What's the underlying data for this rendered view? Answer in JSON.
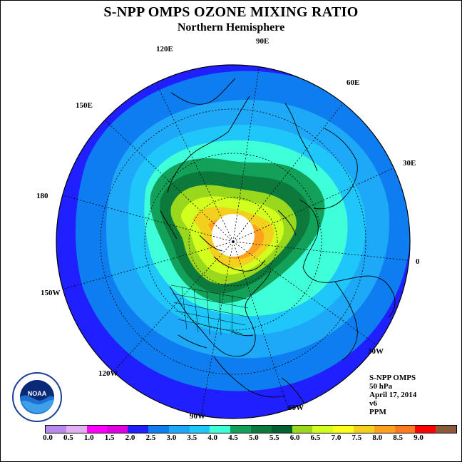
{
  "title": "S-NPP OMPS OZONE MIXING RATIO",
  "subtitle": "Northern Hemisphere",
  "longitude_labels": [
    "120E",
    "90E",
    "60E",
    "150E",
    "30E",
    "180",
    "0",
    "150W",
    "30W",
    "120W",
    "60W",
    "90W"
  ],
  "info": {
    "instrument": "S-NPP OMPS",
    "level": "50 hPa",
    "date": "April 17, 2014",
    "version": "v6",
    "units": "PPM"
  },
  "logo": {
    "name": "noaa-logo",
    "text": "NOAA"
  },
  "colorbar": {
    "colors": [
      "#b888ef",
      "#e2b0f0",
      "#ff00ff",
      "#e000e0",
      "#1f1fff",
      "#0d7df0",
      "#1ea8f8",
      "#1ec6fa",
      "#3effd8",
      "#13a15a",
      "#0b7a3a",
      "#006030",
      "#9ad81e",
      "#d2ff1e",
      "#ffff1e",
      "#f4d01e",
      "#ffa01e",
      "#ff7a1e",
      "#ff0000",
      "#8a5a3a"
    ],
    "tick_labels": [
      "0.0",
      "0.5",
      "1.0",
      "1.5",
      "2.0",
      "2.5",
      "3.0",
      "3.5",
      "4.0",
      "4.5",
      "5.0",
      "5.5",
      "6.0",
      "6.5",
      "7.0",
      "7.5",
      "8.0",
      "8.5",
      "9.0"
    ]
  },
  "field_colors": {
    "outer": "#1f1fff",
    "band2": "#0d7df0",
    "band3": "#1ea8f8",
    "band4": "#1ec6fa",
    "band5": "#3effd8",
    "band6": "#13a15a",
    "band7": "#0b7a3a",
    "band8": "#9ad81e",
    "band9": "#d2ff1e",
    "band10": "#f4d01e",
    "band11": "#ffa01e",
    "pole": "#ffffff"
  }
}
